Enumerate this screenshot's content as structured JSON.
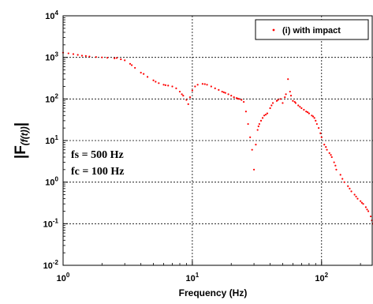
{
  "chart_data": {
    "type": "scatter",
    "xlabel": "Frequency (Hz)",
    "ylabel": {
      "prefix": "|F",
      "sub": "(f(t))",
      "suffix": "|"
    },
    "x_scale": "log",
    "y_scale": "log",
    "xlim": [
      1,
      250
    ],
    "ylim": [
      0.01,
      10000
    ],
    "x_ticks": [
      {
        "base": "10",
        "exp": "0",
        "value": 1
      },
      {
        "base": "10",
        "exp": "1",
        "value": 10
      },
      {
        "base": "10",
        "exp": "2",
        "value": 100
      }
    ],
    "y_ticks": [
      {
        "base": "10",
        "exp": "4",
        "value": 10000
      },
      {
        "base": "10",
        "exp": "3",
        "value": 1000
      },
      {
        "base": "10",
        "exp": "2",
        "value": 100
      },
      {
        "base": "10",
        "exp": "1",
        "value": 10
      },
      {
        "base": "10",
        "exp": "0",
        "value": 1
      },
      {
        "base": "10",
        "exp": "-1",
        "value": 0.1
      },
      {
        "base": "10",
        "exp": "-2",
        "value": 0.01
      }
    ],
    "grid": true,
    "legend_position": "top-right",
    "series": [
      {
        "name": "(i) with impact",
        "color": "#ff0000",
        "marker": "dot",
        "points": [
          [
            1.0,
            1300
          ],
          [
            1.1,
            1250
          ],
          [
            1.2,
            1200
          ],
          [
            1.3,
            1150
          ],
          [
            1.4,
            1100
          ],
          [
            1.5,
            1080
          ],
          [
            1.6,
            1050
          ],
          [
            1.8,
            1020
          ],
          [
            2.0,
            1000
          ],
          [
            2.2,
            980
          ],
          [
            2.5,
            950
          ],
          [
            2.8,
            900
          ],
          [
            3.0,
            850
          ],
          [
            3.3,
            700
          ],
          [
            3.6,
            560
          ],
          [
            4.0,
            430
          ],
          [
            4.5,
            340
          ],
          [
            5.0,
            280
          ],
          [
            5.5,
            240
          ],
          [
            6.0,
            220
          ],
          [
            6.5,
            210
          ],
          [
            7.0,
            200
          ],
          [
            7.5,
            180
          ],
          [
            8.0,
            150
          ],
          [
            8.5,
            120
          ],
          [
            9.0,
            95
          ],
          [
            9.3,
            75
          ],
          [
            9.6,
            110
          ],
          [
            10.0,
            160
          ],
          [
            10.5,
            200
          ],
          [
            11.0,
            220
          ],
          [
            12.0,
            230
          ],
          [
            13.0,
            220
          ],
          [
            14.0,
            200
          ],
          [
            15.0,
            180
          ],
          [
            16.0,
            165
          ],
          [
            17.0,
            150
          ],
          [
            18.0,
            140
          ],
          [
            19.0,
            130
          ],
          [
            20.0,
            120
          ],
          [
            21.0,
            110
          ],
          [
            22.0,
            105
          ],
          [
            23.0,
            100
          ],
          [
            24.0,
            95
          ],
          [
            25.0,
            85
          ],
          [
            26.0,
            50
          ],
          [
            27.0,
            25
          ],
          [
            28.0,
            12
          ],
          [
            29.0,
            6
          ],
          [
            30.0,
            2
          ],
          [
            31.0,
            8
          ],
          [
            32.0,
            18
          ],
          [
            33.0,
            25
          ],
          [
            34.0,
            30
          ],
          [
            35.0,
            35
          ],
          [
            36.0,
            40
          ],
          [
            38.0,
            45
          ],
          [
            40.0,
            60
          ],
          [
            42.0,
            80
          ],
          [
            45.0,
            90
          ],
          [
            48.0,
            100
          ],
          [
            50.0,
            80
          ],
          [
            52.0,
            110
          ],
          [
            55.0,
            300
          ],
          [
            57.0,
            150
          ],
          [
            60.0,
            90
          ],
          [
            63.0,
            80
          ],
          [
            66.0,
            70
          ],
          [
            70.0,
            60
          ],
          [
            73.0,
            55
          ],
          [
            76.0,
            50
          ],
          [
            80.0,
            45
          ],
          [
            84.0,
            40
          ],
          [
            88.0,
            35
          ],
          [
            90.0,
            30
          ],
          [
            95.0,
            20
          ],
          [
            100.0,
            12
          ],
          [
            105.0,
            8
          ],
          [
            110.0,
            6
          ],
          [
            115.0,
            5
          ],
          [
            120.0,
            4
          ],
          [
            125.0,
            3
          ],
          [
            130.0,
            2
          ],
          [
            140.0,
            1.5
          ],
          [
            150.0,
            1.0
          ],
          [
            160.0,
            0.8
          ],
          [
            170.0,
            0.6
          ],
          [
            180.0,
            0.5
          ],
          [
            190.0,
            0.4
          ],
          [
            200.0,
            0.35
          ],
          [
            210.0,
            0.3
          ],
          [
            220.0,
            0.25
          ],
          [
            230.0,
            0.2
          ],
          [
            240.0,
            0.15
          ],
          [
            250.0,
            0.1
          ],
          [
            2.6,
            970
          ],
          [
            3.4,
            650
          ],
          [
            4.2,
            400
          ],
          [
            5.2,
            260
          ],
          [
            6.2,
            215
          ],
          [
            8.3,
            130
          ],
          [
            12.5,
            228
          ],
          [
            17.5,
            145
          ],
          [
            22.5,
            102
          ],
          [
            32.5,
            22
          ],
          [
            37.0,
            42
          ],
          [
            41.0,
            70
          ],
          [
            46.0,
            95
          ],
          [
            53.0,
            130
          ],
          [
            58.0,
            120
          ],
          [
            62.0,
            85
          ],
          [
            68.0,
            65
          ],
          [
            78.0,
            48
          ],
          [
            86.0,
            38
          ],
          [
            92.0,
            25
          ],
          [
            98.0,
            15
          ],
          [
            108.0,
            7
          ],
          [
            118.0,
            4.5
          ],
          [
            128.0,
            2.5
          ],
          [
            145.0,
            1.2
          ],
          [
            165.0,
            0.7
          ],
          [
            185.0,
            0.45
          ],
          [
            205.0,
            0.32
          ],
          [
            225.0,
            0.22
          ],
          [
            245.0,
            0.12
          ]
        ]
      }
    ],
    "annotations": [
      {
        "text": "fs = 500 Hz"
      },
      {
        "text": "fc = 100 Hz"
      }
    ]
  }
}
